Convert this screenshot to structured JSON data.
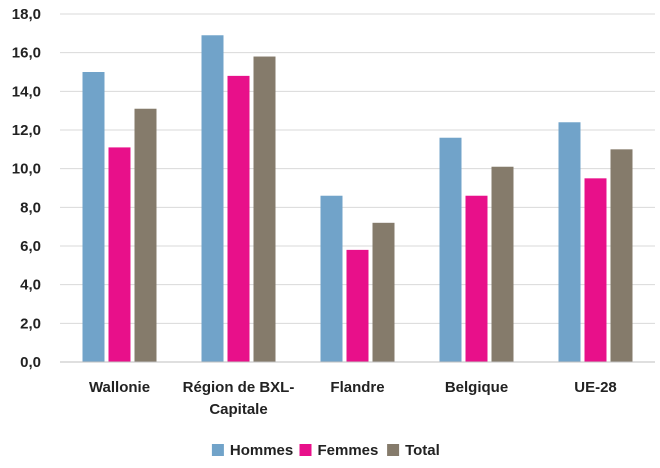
{
  "chart_data": {
    "type": "bar",
    "title": "",
    "xlabel": "",
    "ylabel": "",
    "ylim": [
      0,
      18
    ],
    "yticks": [
      "0,0",
      "2,0",
      "4,0",
      "6,0",
      "8,0",
      "10,0",
      "12,0",
      "14,0",
      "16,0",
      "18,0"
    ],
    "ytick_values": [
      0,
      2,
      4,
      6,
      8,
      10,
      12,
      14,
      16,
      18
    ],
    "grid": true,
    "legend_position": "bottom",
    "categories": [
      [
        "Wallonie"
      ],
      [
        "Région de BXL-",
        "Capitale"
      ],
      [
        "Flandre"
      ],
      [
        "Belgique"
      ],
      [
        "UE-28"
      ]
    ],
    "series": [
      {
        "name": "Hommes",
        "color": "#71a3c9",
        "values": [
          15.0,
          16.9,
          8.6,
          11.6,
          12.4
        ]
      },
      {
        "name": "Femmes",
        "color": "#e8108a",
        "values": [
          11.1,
          14.8,
          5.8,
          8.6,
          9.5
        ]
      },
      {
        "name": "Total",
        "color": "#857b6b",
        "values": [
          13.1,
          15.8,
          7.2,
          10.1,
          11.0
        ]
      }
    ]
  }
}
